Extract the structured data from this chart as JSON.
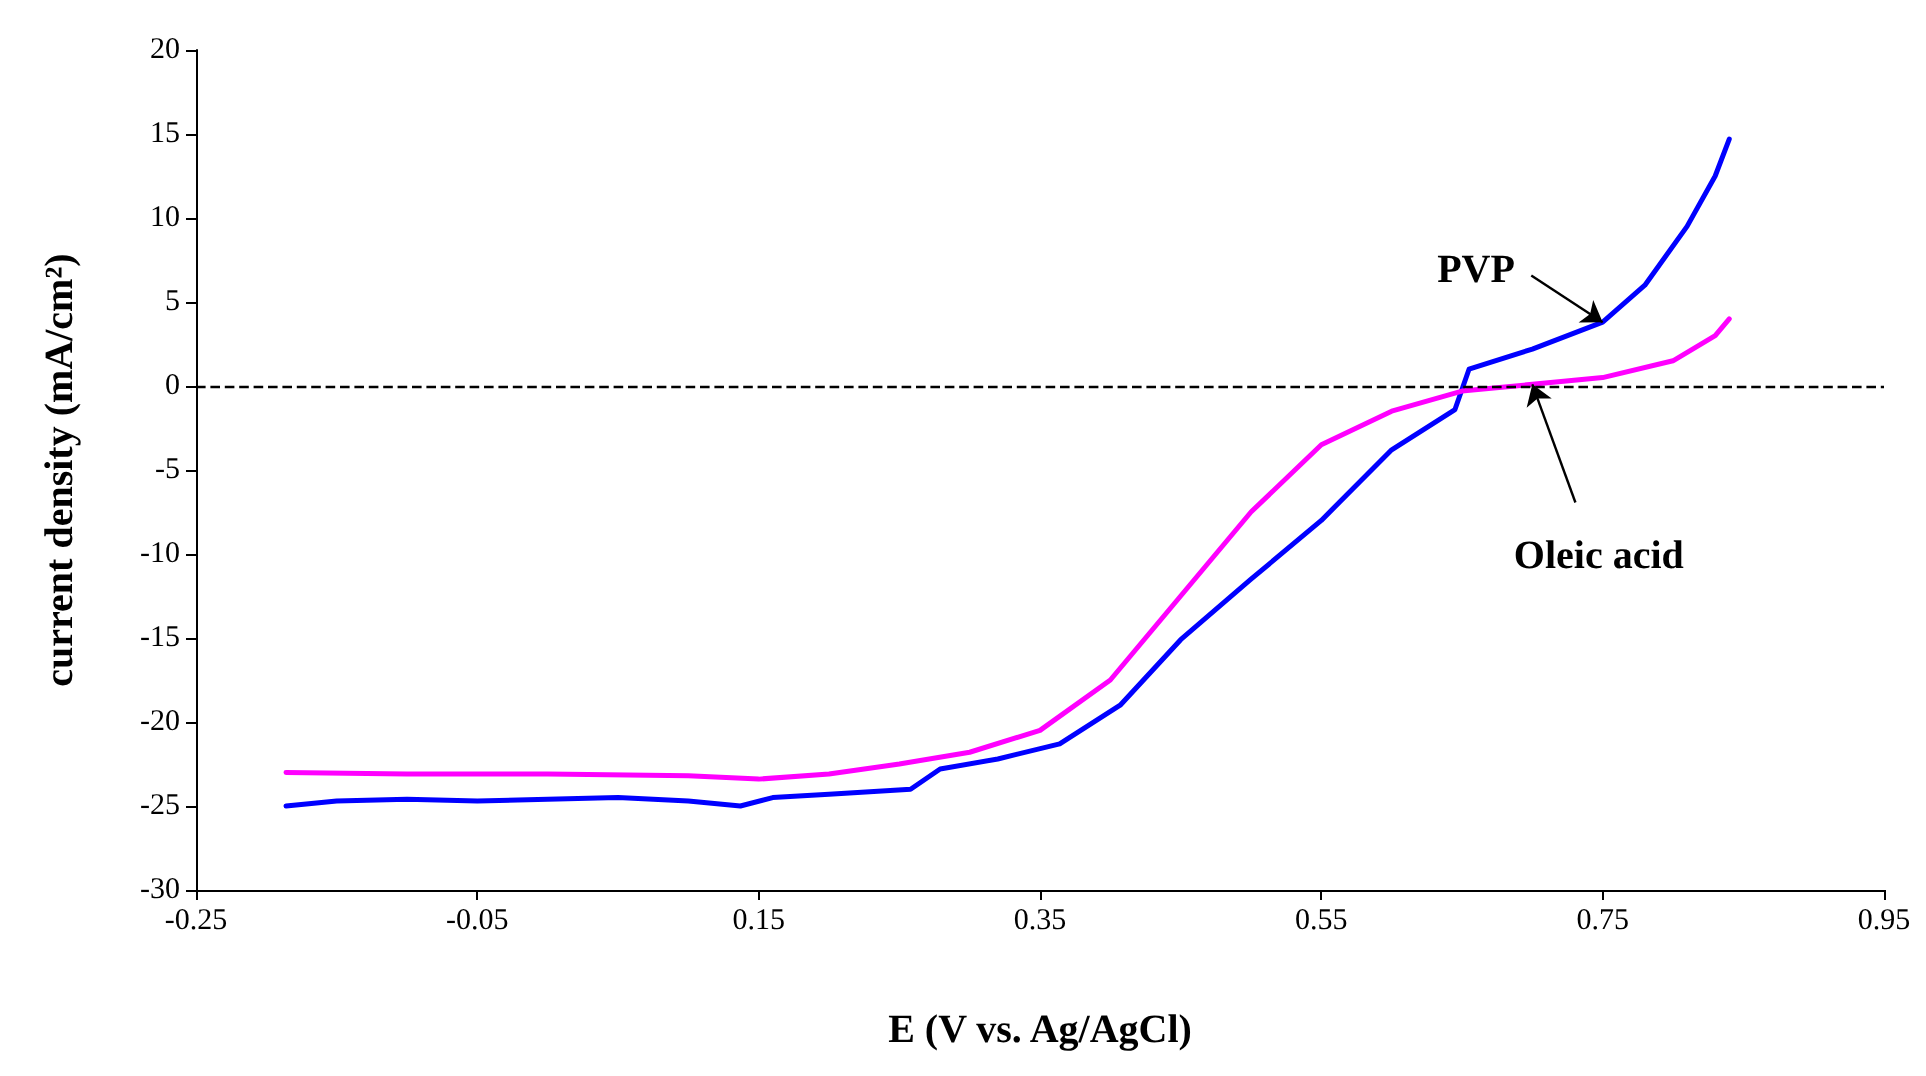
{
  "chart_data": {
    "type": "line",
    "xlabel": "E (V vs. Ag/AgCl)",
    "ylabel": "current density (mA/cm²)",
    "xlim": [
      -0.25,
      0.95
    ],
    "xticks": [
      -0.25,
      -0.05,
      0.15,
      0.35,
      0.55,
      0.75,
      0.95
    ],
    "ylim": [
      -30,
      20
    ],
    "yticks": [
      -30,
      -25,
      -20,
      -15,
      -10,
      -5,
      0,
      5,
      10,
      15,
      20
    ],
    "grid": false,
    "marker": "none",
    "line_style": "solid",
    "series": [
      {
        "color": "#0000ff",
        "x": [
          -0.186,
          -0.15,
          -0.1,
          -0.05,
          0,
          0.05,
          0.1,
          0.137,
          0.16,
          0.2,
          0.258,
          0.279,
          0.32,
          0.364,
          0.407,
          0.45,
          0.5,
          0.55,
          0.6,
          0.645,
          0.655,
          0.7,
          0.75,
          0.78,
          0.81,
          0.83,
          0.84
        ],
        "values": [
          -25,
          -24.7,
          -24.6,
          -24.7,
          -24.6,
          -24.5,
          -24.7,
          -25,
          -24.5,
          -24.3,
          -24,
          -22.8,
          -22.2,
          -21.3,
          -19,
          -15.1,
          -11.5,
          -8,
          -3.8,
          -1.4,
          1,
          2.2,
          3.8,
          6,
          9.5,
          12.5,
          14.7
        ]
      },
      {
        "color": "#ff00ff",
        "x": [
          -0.186,
          -0.1,
          0,
          0.1,
          0.15,
          0.2,
          0.25,
          0.3,
          0.35,
          0.4,
          0.45,
          0.5,
          0.55,
          0.6,
          0.65,
          0.7,
          0.75,
          0.8,
          0.83,
          0.84
        ],
        "values": [
          -23,
          -23.1,
          -23.1,
          -23.2,
          -23.4,
          -23.1,
          -22.5,
          -21.8,
          -20.5,
          -17.5,
          -12.5,
          -7.5,
          -3.5,
          -1.5,
          -0.3,
          0.1,
          0.5,
          1.5,
          3,
          4
        ]
      }
    ],
    "ref_lines": [
      {
        "axis": "y",
        "value": 0,
        "color": "#000000",
        "line_style": "dashed"
      }
    ],
    "annotations": [
      {
        "text": "PVP",
        "x": 0.75,
        "y": 3.8
      },
      {
        "text": "Oleic acid",
        "x": 0.7,
        "y": 0.1
      }
    ]
  }
}
